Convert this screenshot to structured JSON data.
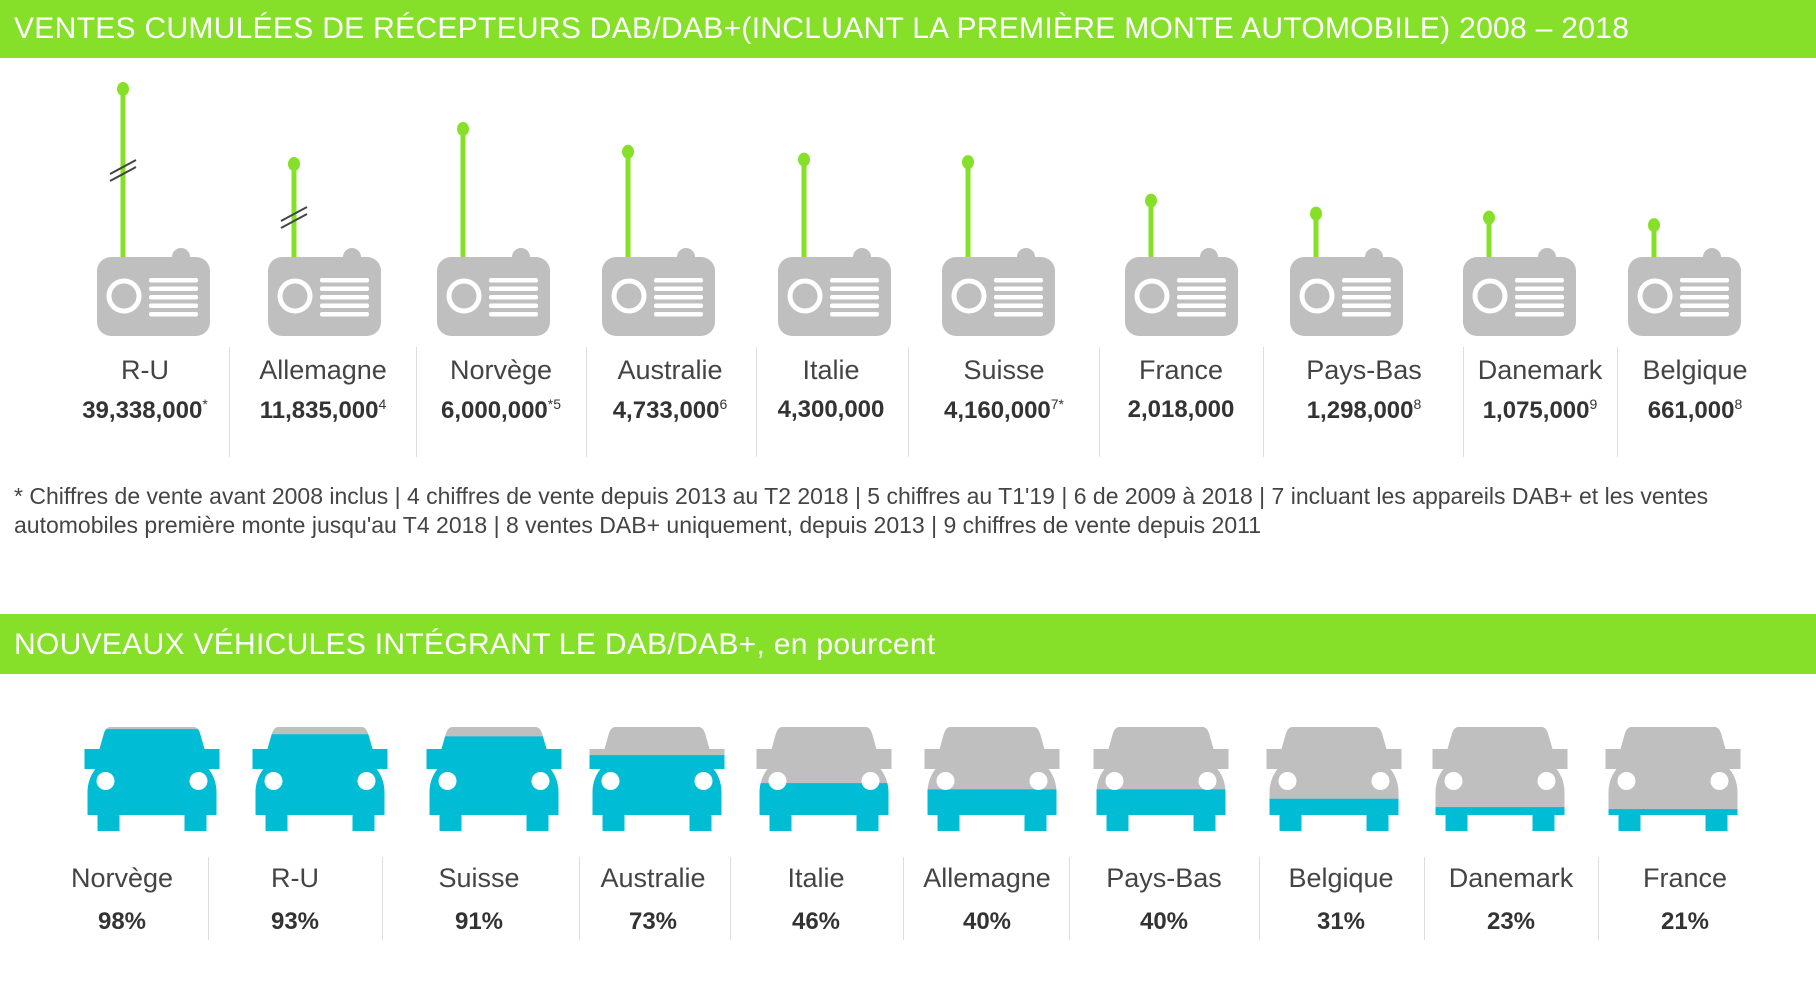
{
  "colors": {
    "green": "#86e02a",
    "cyan": "#00bcd4",
    "grey": "#bfbfbf"
  },
  "chart_data": [
    {
      "type": "bar",
      "title": "VENTES CUMULÉES DE RÉCEPTEURS DAB/DAB+(INCLUANT LA PREMIÈRE MONTE AUTOMOBILE) 2008 – 2018",
      "categories": [
        "R-U",
        "Allemagne",
        "Norvège",
        "Australie",
        "Italie",
        "Suisse",
        "France",
        "Pays-Bas",
        "Danemark",
        "Belgique"
      ],
      "values": [
        39338000,
        11835000,
        6000000,
        4733000,
        4300000,
        4160000,
        2018000,
        1298000,
        1075000,
        661000
      ],
      "value_labels": [
        "39,338,000",
        "11,835,000",
        "6,000,000",
        "4,733,000",
        "4,300,000",
        "4,160,000",
        "2,018,000",
        "1,298,000",
        "1,075,000",
        "661,000"
      ],
      "footnote_marks": [
        "*",
        "4",
        "*5",
        "6",
        "",
        "7*",
        "",
        "8",
        "9",
        "8"
      ],
      "axis_break": [
        true,
        true,
        false,
        false,
        false,
        false,
        false,
        false,
        false,
        false
      ],
      "footnote": "* Chiffres de vente avant 2008 inclus  | 4 chiffres de vente depuis 2013 au T2 2018 | 5 chiffres au T1'19 |  6 de 2009 à 2018 | 7 incluant les appareils DAB+ et les ventes automobiles première monte jusqu'au T4 2018 |  8 ventes DAB+ uniquement, depuis 2013 |  9 chiffres de vente depuis 2011"
    },
    {
      "type": "bar",
      "title": "NOUVEAUX VÉHICULES INTÉGRANT LE  DAB/DAB+, en pourcent",
      "categories": [
        "Norvège",
        "R-U",
        "Suisse",
        "Australie",
        "Italie",
        "Allemagne",
        "Pays-Bas",
        "Belgique",
        "Danemark",
        "France"
      ],
      "values": [
        98,
        93,
        91,
        73,
        46,
        40,
        40,
        31,
        23,
        21
      ],
      "value_labels": [
        "98%",
        "93%",
        "91%",
        "73%",
        "46%",
        "40%",
        "40%",
        "31%",
        "23%",
        "21%"
      ],
      "unit": "%"
    }
  ]
}
